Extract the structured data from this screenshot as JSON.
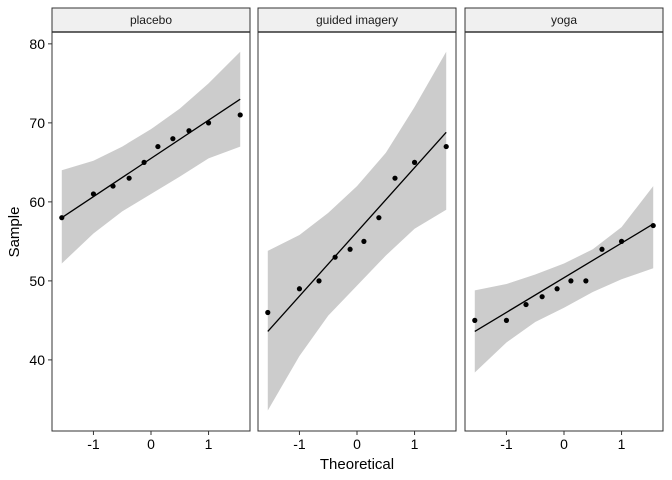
{
  "chart_data": {
    "type": "scatter",
    "xlabel": "Theoretical",
    "ylabel": "Sample",
    "xlim": [
      -1.72,
      1.72
    ],
    "ylim": [
      31,
      81.5
    ],
    "x_ticks": [
      -1,
      0,
      1
    ],
    "y_ticks": [
      40,
      50,
      60,
      70,
      80
    ],
    "grid": false,
    "panels": [
      {
        "name": "placebo",
        "points": [
          [
            -1.55,
            58
          ],
          [
            -1.0,
            61
          ],
          [
            -0.66,
            62
          ],
          [
            -0.38,
            63
          ],
          [
            -0.12,
            65
          ],
          [
            0.12,
            67
          ],
          [
            0.38,
            68
          ],
          [
            0.66,
            69
          ],
          [
            1.0,
            70
          ],
          [
            1.55,
            71
          ]
        ],
        "line": [
          [
            -1.55,
            58
          ],
          [
            1.55,
            73
          ]
        ],
        "band_upper": [
          [
            -1.55,
            64
          ],
          [
            -1.0,
            65.2
          ],
          [
            -0.5,
            67
          ],
          [
            0.0,
            69.2
          ],
          [
            0.5,
            71.8
          ],
          [
            1.0,
            75
          ],
          [
            1.55,
            79
          ]
        ],
        "band_lower": [
          [
            -1.55,
            52.2
          ],
          [
            -1.0,
            56
          ],
          [
            -0.5,
            58.8
          ],
          [
            0.0,
            61
          ],
          [
            0.5,
            63.2
          ],
          [
            1.0,
            65.5
          ],
          [
            1.55,
            67
          ]
        ]
      },
      {
        "name": "guided imagery",
        "points": [
          [
            -1.55,
            46
          ],
          [
            -1.0,
            49
          ],
          [
            -0.66,
            50
          ],
          [
            -0.38,
            53
          ],
          [
            -0.12,
            54
          ],
          [
            0.12,
            55
          ],
          [
            0.38,
            58
          ],
          [
            0.66,
            63
          ],
          [
            1.0,
            65
          ],
          [
            1.55,
            67
          ]
        ],
        "line": [
          [
            -1.55,
            43.6
          ],
          [
            1.55,
            68.8
          ]
        ],
        "band_upper": [
          [
            -1.55,
            53.8
          ],
          [
            -1.0,
            55.8
          ],
          [
            -0.5,
            58.6
          ],
          [
            0.0,
            62
          ],
          [
            0.5,
            66.2
          ],
          [
            1.0,
            72
          ],
          [
            1.55,
            79
          ]
        ],
        "band_lower": [
          [
            -1.55,
            33.6
          ],
          [
            -1.0,
            40.5
          ],
          [
            -0.5,
            45.6
          ],
          [
            0.0,
            49.4
          ],
          [
            0.5,
            53.2
          ],
          [
            1.0,
            56.6
          ],
          [
            1.55,
            59
          ]
        ]
      },
      {
        "name": "yoga",
        "points": [
          [
            -1.55,
            45
          ],
          [
            -1.0,
            45
          ],
          [
            -0.66,
            47
          ],
          [
            -0.38,
            48
          ],
          [
            -0.12,
            49
          ],
          [
            0.12,
            50
          ],
          [
            0.38,
            50
          ],
          [
            0.66,
            54
          ],
          [
            1.0,
            55
          ],
          [
            1.55,
            57
          ]
        ],
        "line": [
          [
            -1.55,
            43.6
          ],
          [
            1.55,
            57.2
          ]
        ],
        "band_upper": [
          [
            -1.55,
            48.8
          ],
          [
            -1.0,
            49.6
          ],
          [
            -0.5,
            50.8
          ],
          [
            0.0,
            52.2
          ],
          [
            0.5,
            54
          ],
          [
            1.0,
            56.8
          ],
          [
            1.55,
            62
          ]
        ],
        "band_lower": [
          [
            -1.55,
            38.4
          ],
          [
            -1.0,
            42.2
          ],
          [
            -0.5,
            44.8
          ],
          [
            0.0,
            46.6
          ],
          [
            0.5,
            48.6
          ],
          [
            1.0,
            50.2
          ],
          [
            1.55,
            51.6
          ]
        ]
      }
    ],
    "colors": {
      "point": "#000000",
      "line": "#000000",
      "band": "#cccccc",
      "strip_fill": "#f0f0f0",
      "strip_border": "#333333",
      "panel_border": "#333333"
    }
  }
}
